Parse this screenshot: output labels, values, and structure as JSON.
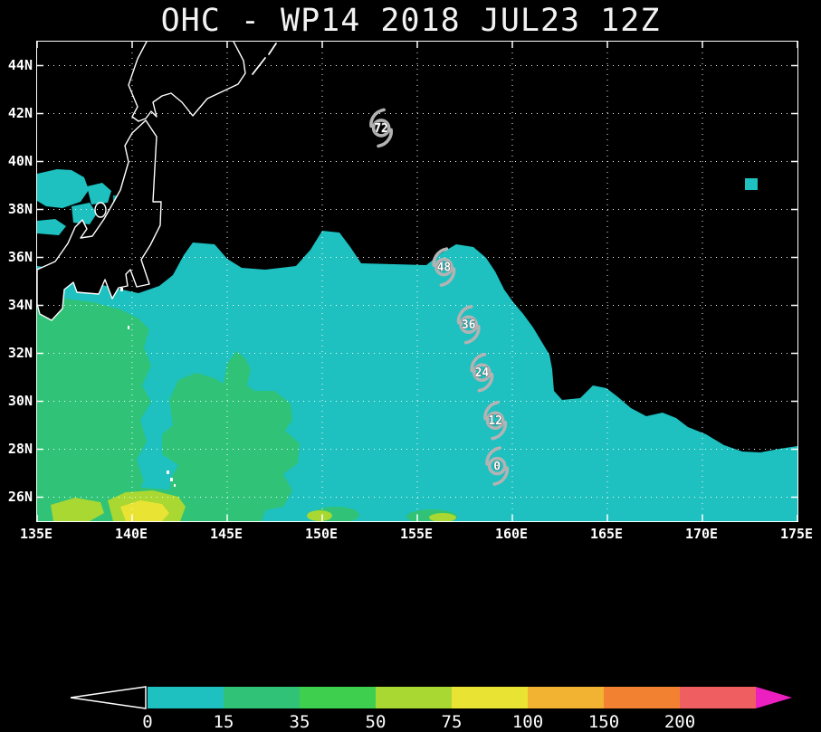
{
  "title": "OHC - WP14 2018 JUL23 12Z",
  "colors": {
    "background": "#000000",
    "frame": "#ffffff",
    "coastline": "#ffffff",
    "grid": "#ffffff",
    "storm": "#b3b3b3",
    "teal": "#1ec0c0",
    "teal_dark": "#0a9c9c",
    "green": "#30c377",
    "chartreuse": "#a8d831",
    "yellow": "#e9e334"
  },
  "chart_data": {
    "type": "heatmap",
    "title": "OHC - WP14 2018 JUL23 12Z",
    "parameter": "OHC",
    "storm_id": "WP14",
    "valid_time": "2018 JUL23 12Z",
    "lon_range": [
      135,
      175
    ],
    "lat_range": [
      25,
      45
    ],
    "grid": true,
    "lon_ticks": [
      {
        "label": "135E",
        "value": 135
      },
      {
        "label": "140E",
        "value": 140
      },
      {
        "label": "145E",
        "value": 145
      },
      {
        "label": "150E",
        "value": 150
      },
      {
        "label": "155E",
        "value": 155
      },
      {
        "label": "160E",
        "value": 160
      },
      {
        "label": "165E",
        "value": 165
      },
      {
        "label": "170E",
        "value": 170
      },
      {
        "label": "175E",
        "value": 175
      }
    ],
    "lat_ticks": [
      {
        "label": "44N",
        "value": 44
      },
      {
        "label": "42N",
        "value": 42
      },
      {
        "label": "40N",
        "value": 40
      },
      {
        "label": "38N",
        "value": 38
      },
      {
        "label": "36N",
        "value": 36
      },
      {
        "label": "34N",
        "value": 34
      },
      {
        "label": "32N",
        "value": 32
      },
      {
        "label": "30N",
        "value": 30
      },
      {
        "label": "28N",
        "value": 28
      },
      {
        "label": "26N",
        "value": 26
      }
    ],
    "colorbar": {
      "levels": [
        0,
        15,
        35,
        50,
        75,
        100,
        150,
        200
      ],
      "labels": [
        "0",
        "15",
        "35",
        "50",
        "75",
        "100",
        "150",
        "200"
      ],
      "segment_colors": [
        "#1ec0c0",
        "#30c377",
        "#3ecf4e",
        "#a8d831",
        "#e9e334",
        "#f2b232",
        "#f28232",
        "#ef5f62"
      ],
      "over_color": "#ec1fc0",
      "under_color": "#000000"
    },
    "track": {
      "points": [
        {
          "label": "0",
          "lon": 159.2,
          "lat": 27.3
        },
        {
          "label": "12",
          "lon": 159.1,
          "lat": 29.2
        },
        {
          "label": "24",
          "lon": 158.4,
          "lat": 31.2
        },
        {
          "label": "36",
          "lon": 157.7,
          "lat": 33.2
        },
        {
          "label": "48",
          "lon": 156.4,
          "lat": 35.6
        },
        {
          "label": "72",
          "lon": 153.1,
          "lat": 41.4
        }
      ]
    }
  }
}
